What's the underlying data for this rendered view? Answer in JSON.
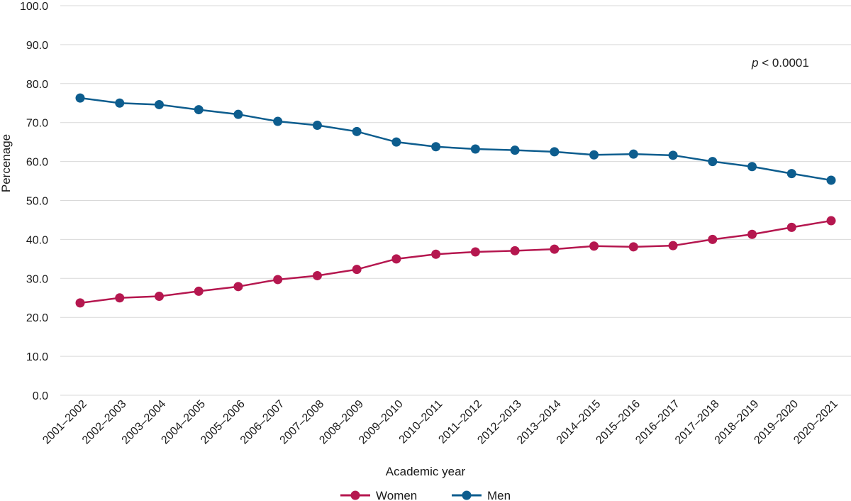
{
  "chart_data": {
    "type": "line",
    "title": "",
    "xlabel": "Academic year",
    "ylabel": "Percenage",
    "ylim": [
      0,
      100
    ],
    "yticks": [
      "0.0",
      "10.0",
      "20.0",
      "30.0",
      "40.0",
      "50.0",
      "60.0",
      "70.0",
      "80.0",
      "90.0",
      "100.0"
    ],
    "grid": "horizontal",
    "legend_position": "bottom",
    "annotation": {
      "italic": "p",
      "rest": " < 0.0001"
    },
    "categories": [
      "2001–2002",
      "2002–2003",
      "2003–2004",
      "2004–2005",
      "2005–2006",
      "2006–2007",
      "2007–2008",
      "2008–2009",
      "2009–2010",
      "2010–2011",
      "2011–2012",
      "2012–2013",
      "2013–2014",
      "2014–2015",
      "2015–2016",
      "2016–2017",
      "2017–2018",
      "2018–2019",
      "2019–2020",
      "2020–2021"
    ],
    "series": [
      {
        "name": "Women",
        "color": "#b5174f",
        "values": [
          23.7,
          25.0,
          25.4,
          26.7,
          27.9,
          29.7,
          30.7,
          32.3,
          35.0,
          36.2,
          36.8,
          37.1,
          37.5,
          38.3,
          38.1,
          38.4,
          40.0,
          41.3,
          43.1,
          44.8
        ]
      },
      {
        "name": "Men",
        "color": "#0d5d8e",
        "values": [
          76.3,
          75.0,
          74.6,
          73.3,
          72.1,
          70.3,
          69.3,
          67.7,
          65.0,
          63.8,
          63.2,
          62.9,
          62.5,
          61.7,
          61.9,
          61.6,
          60.0,
          58.7,
          56.9,
          55.2
        ]
      }
    ]
  }
}
